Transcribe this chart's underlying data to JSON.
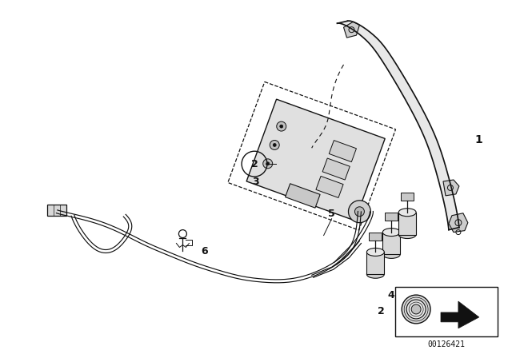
{
  "bg_color": "#ffffff",
  "part_number": "00126421",
  "fig_width": 6.4,
  "fig_height": 4.48,
  "dpi": 100
}
